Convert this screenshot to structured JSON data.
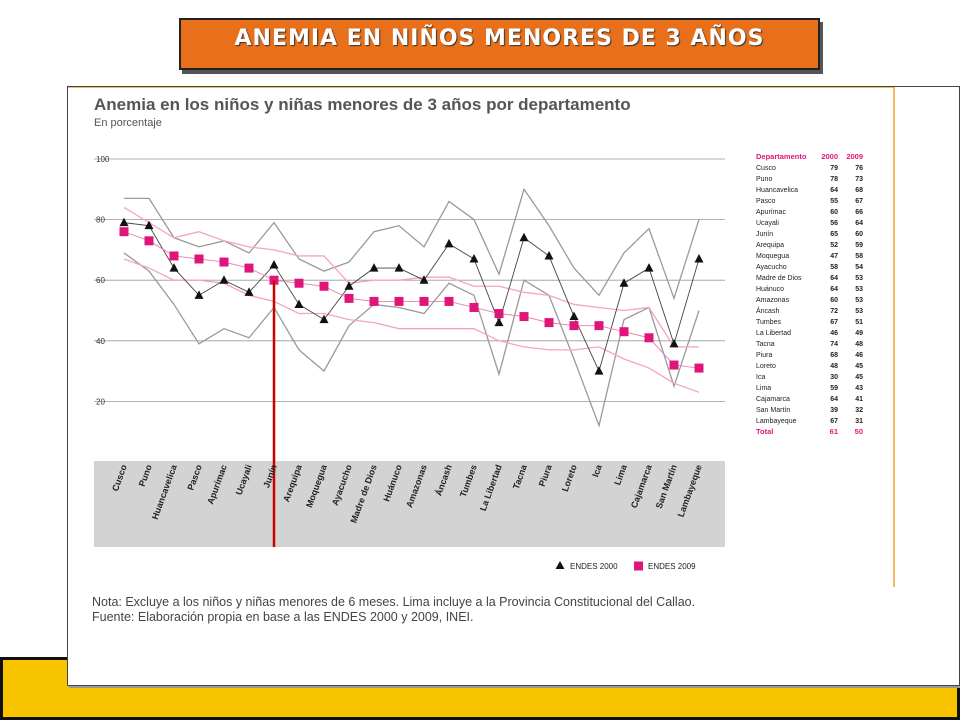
{
  "banner": {
    "title": "ANEMIA EN NIÑOS MENORES DE 3 AÑOS"
  },
  "chart_data": {
    "type": "line",
    "title": "Anemia en los niños y niñas menores de 3 años por departamento",
    "subtitle": "En porcentaje",
    "ylim": [
      0,
      100
    ],
    "yticks": [
      20,
      40,
      60,
      80,
      100
    ],
    "categories": [
      "Cusco",
      "Puno",
      "Huancavelica",
      "Pasco",
      "Apurímac",
      "Ucayali",
      "Junín",
      "Arequipa",
      "Moquegua",
      "Ayacucho",
      "Madre de Dios",
      "Huánuco",
      "Amazonas",
      "Áncash",
      "Tumbes",
      "La Libertad",
      "Tacna",
      "Piura",
      "Loreto",
      "Ica",
      "Lima",
      "Cajamarca",
      "San Martín",
      "Lambayeque"
    ],
    "series": [
      {
        "name": "ENDES 2000",
        "marker": "triangle",
        "color": "#111111",
        "values": [
          79,
          78,
          64,
          55,
          60,
          56,
          65,
          52,
          47,
          58,
          64,
          64,
          60,
          72,
          67,
          46,
          74,
          68,
          48,
          30,
          59,
          64,
          39,
          67
        ]
      },
      {
        "name": "ENDES 2009",
        "marker": "square",
        "color": "#e0157a",
        "values": [
          76,
          73,
          68,
          67,
          66,
          64,
          60,
          59,
          58,
          54,
          53,
          53,
          53,
          53,
          51,
          49,
          48,
          46,
          45,
          45,
          43,
          41,
          32,
          31
        ]
      }
    ],
    "bands": {
      "ci_2000_upper": [
        87,
        87,
        74,
        71,
        73,
        69,
        79,
        67,
        63,
        66,
        76,
        78,
        71,
        86,
        80,
        62,
        90,
        78,
        64,
        55,
        69,
        77,
        54,
        80
      ],
      "ci_2000_lower": [
        69,
        63,
        52,
        39,
        44,
        41,
        51,
        37,
        30,
        45,
        52,
        51,
        49,
        59,
        55,
        29,
        60,
        55,
        34,
        12,
        47,
        51,
        25,
        50
      ],
      "ci_2009_upper": [
        84,
        79,
        74,
        76,
        73,
        71,
        70,
        68,
        68,
        59,
        60,
        60,
        61,
        61,
        58,
        58,
        56,
        55,
        52,
        51,
        50,
        51,
        38,
        38
      ],
      "ci_2009_lower": [
        67,
        64,
        60,
        60,
        59,
        55,
        53,
        49,
        49,
        47,
        46,
        44,
        44,
        44,
        44,
        40,
        38,
        37,
        37,
        38,
        34,
        31,
        26,
        23
      ]
    },
    "legend": {
      "position": "bottom-right",
      "labels": [
        "ENDES 2000",
        "ENDES 2009"
      ]
    },
    "grid": true,
    "annotation": {
      "type": "vertical-line",
      "category": "Junín",
      "color": "#cc0000"
    },
    "table": {
      "headers": [
        "Departamento",
        "2000",
        "2009"
      ],
      "rows": [
        [
          "Cusco",
          "79",
          "76"
        ],
        [
          "Puno",
          "78",
          "73"
        ],
        [
          "Huancavelica",
          "64",
          "68"
        ],
        [
          "Pasco",
          "55",
          "67"
        ],
        [
          "Apurímac",
          "60",
          "66"
        ],
        [
          "Ucayali",
          "56",
          "64"
        ],
        [
          "Junín",
          "65",
          "60"
        ],
        [
          "Arequipa",
          "52",
          "59"
        ],
        [
          "Moquegua",
          "47",
          "58"
        ],
        [
          "Ayacucho",
          "58",
          "54"
        ],
        [
          "Madre de Dios",
          "64",
          "53"
        ],
        [
          "Huánuco",
          "64",
          "53"
        ],
        [
          "Amazonas",
          "60",
          "53"
        ],
        [
          "Áncash",
          "72",
          "53"
        ],
        [
          "Tumbes",
          "67",
          "51"
        ],
        [
          "La Libertad",
          "46",
          "49"
        ],
        [
          "Tacna",
          "74",
          "48"
        ],
        [
          "Piura",
          "68",
          "46"
        ],
        [
          "Loreto",
          "48",
          "45"
        ],
        [
          "Ica",
          "30",
          "45"
        ],
        [
          "Lima",
          "59",
          "43"
        ],
        [
          "Cajamarca",
          "64",
          "41"
        ],
        [
          "San Martín",
          "39",
          "32"
        ],
        [
          "Lambayeque",
          "67",
          "31"
        ]
      ],
      "total": [
        "Total",
        "61",
        "50"
      ]
    }
  },
  "notes": {
    "nota": "Nota: Excluye a los niños y niñas menores de 6 meses. Lima incluye a la Provincia Constitucional del Callao.",
    "fuente": "Fuente: Elaboración propia en base a las ENDES 2000 y 2009, INEI."
  }
}
